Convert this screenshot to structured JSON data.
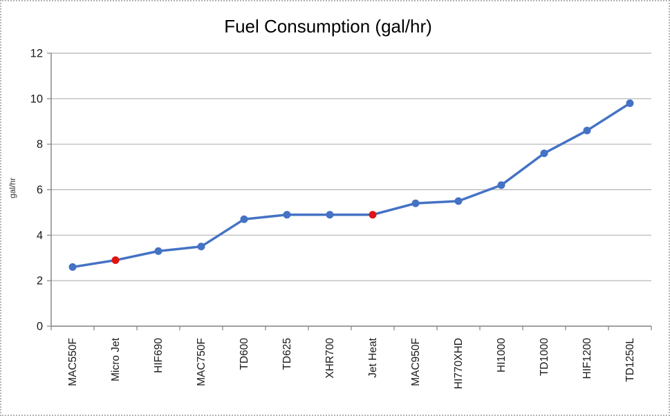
{
  "chart_data": {
    "type": "line",
    "title": "Fuel Consumption (gal/hr)",
    "ylabel": "gal/hr",
    "xlabel": "",
    "categories": [
      "MAC550F",
      "Micro Jet",
      "HIF690",
      "MAC750F",
      "TD600",
      "TD625",
      "XHR700",
      "Jet Heat",
      "MAC950F",
      "HI770XHD",
      "HI1000",
      "TD1000",
      "HIF1200",
      "TD1250L"
    ],
    "values": [
      2.6,
      2.9,
      3.3,
      3.5,
      4.7,
      4.9,
      4.9,
      4.9,
      5.4,
      5.5,
      6.2,
      7.6,
      8.6,
      9.8
    ],
    "highlighted_indices": [
      1,
      7
    ],
    "highlighted_categories": [
      "Micro Jet",
      "Jet Heat"
    ],
    "ylim": [
      0,
      12
    ],
    "yticks": [
      0,
      2,
      4,
      6,
      8,
      10,
      12
    ],
    "grid": "horizontal",
    "legend": "none",
    "colors": {
      "line": "#4472c4",
      "marker": "#4472c4",
      "highlight_marker": "#e01414",
      "grid": "#b2b2b2",
      "axis": "#808080",
      "text": "#1a1a1a"
    }
  }
}
